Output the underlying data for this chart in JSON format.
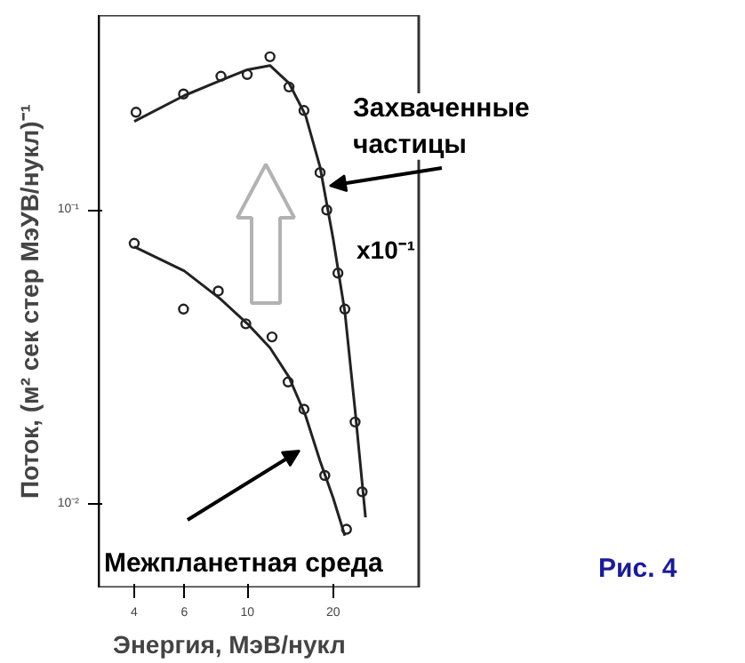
{
  "chart_data": {
    "type": "scatter",
    "xlabel": "Энергия, МэВ/нукл",
    "ylabel": "Поток, (м² сек стер МэУВ/нукл)⁻¹",
    "log": "xy",
    "xlim": [
      3,
      40
    ],
    "ylim": [
      0.0052,
      0.46
    ],
    "xticks": [
      4,
      6,
      10,
      20
    ],
    "yticks": [
      {
        "value": 0.1,
        "label": "10⁻¹"
      },
      {
        "value": 0.01,
        "label": "10⁻²"
      }
    ],
    "grid": false,
    "marker": "circle",
    "series": [
      {
        "color": "#222222",
        "x": [
          4.06,
          5.96,
          8.07,
          9.98,
          12.0,
          14.0,
          15.8,
          18.0,
          19.0,
          20.8,
          22.0,
          23.9,
          25.3
        ],
        "values": [
          0.215,
          0.248,
          0.285,
          0.289,
          0.332,
          0.262,
          0.218,
          0.134,
          0.1,
          0.061,
          0.046,
          0.019,
          0.011
        ]
      },
      {
        "type": "line",
        "marker": "none",
        "color": "#222222",
        "x": [
          4,
          6,
          8,
          10,
          12,
          14,
          16,
          18,
          20,
          22,
          24,
          26
        ],
        "values": [
          0.2,
          0.245,
          0.275,
          0.3,
          0.31,
          0.27,
          0.21,
          0.14,
          0.08,
          0.045,
          0.02,
          0.009
        ]
      },
      {
        "color": "#222222",
        "x": [
          4.0,
          5.96,
          7.9,
          9.87,
          12.2,
          13.9,
          15.8,
          18.7,
          22.3
        ],
        "values": [
          0.077,
          0.046,
          0.053,
          0.041,
          0.037,
          0.026,
          0.021,
          0.0125,
          0.0082
        ]
      },
      {
        "type": "line",
        "marker": "none",
        "color": "#222222",
        "x": [
          4,
          6,
          8,
          10,
          12,
          14,
          16,
          18,
          20,
          22
        ],
        "values": [
          0.075,
          0.062,
          0.05,
          0.041,
          0.034,
          0.027,
          0.02,
          0.014,
          0.0105,
          0.0078
        ]
      }
    ],
    "annotations": [
      "Захваченные\nчастицы",
      "x10⁻¹",
      "Межпланетная среда",
      "Рис. 4"
    ]
  }
}
